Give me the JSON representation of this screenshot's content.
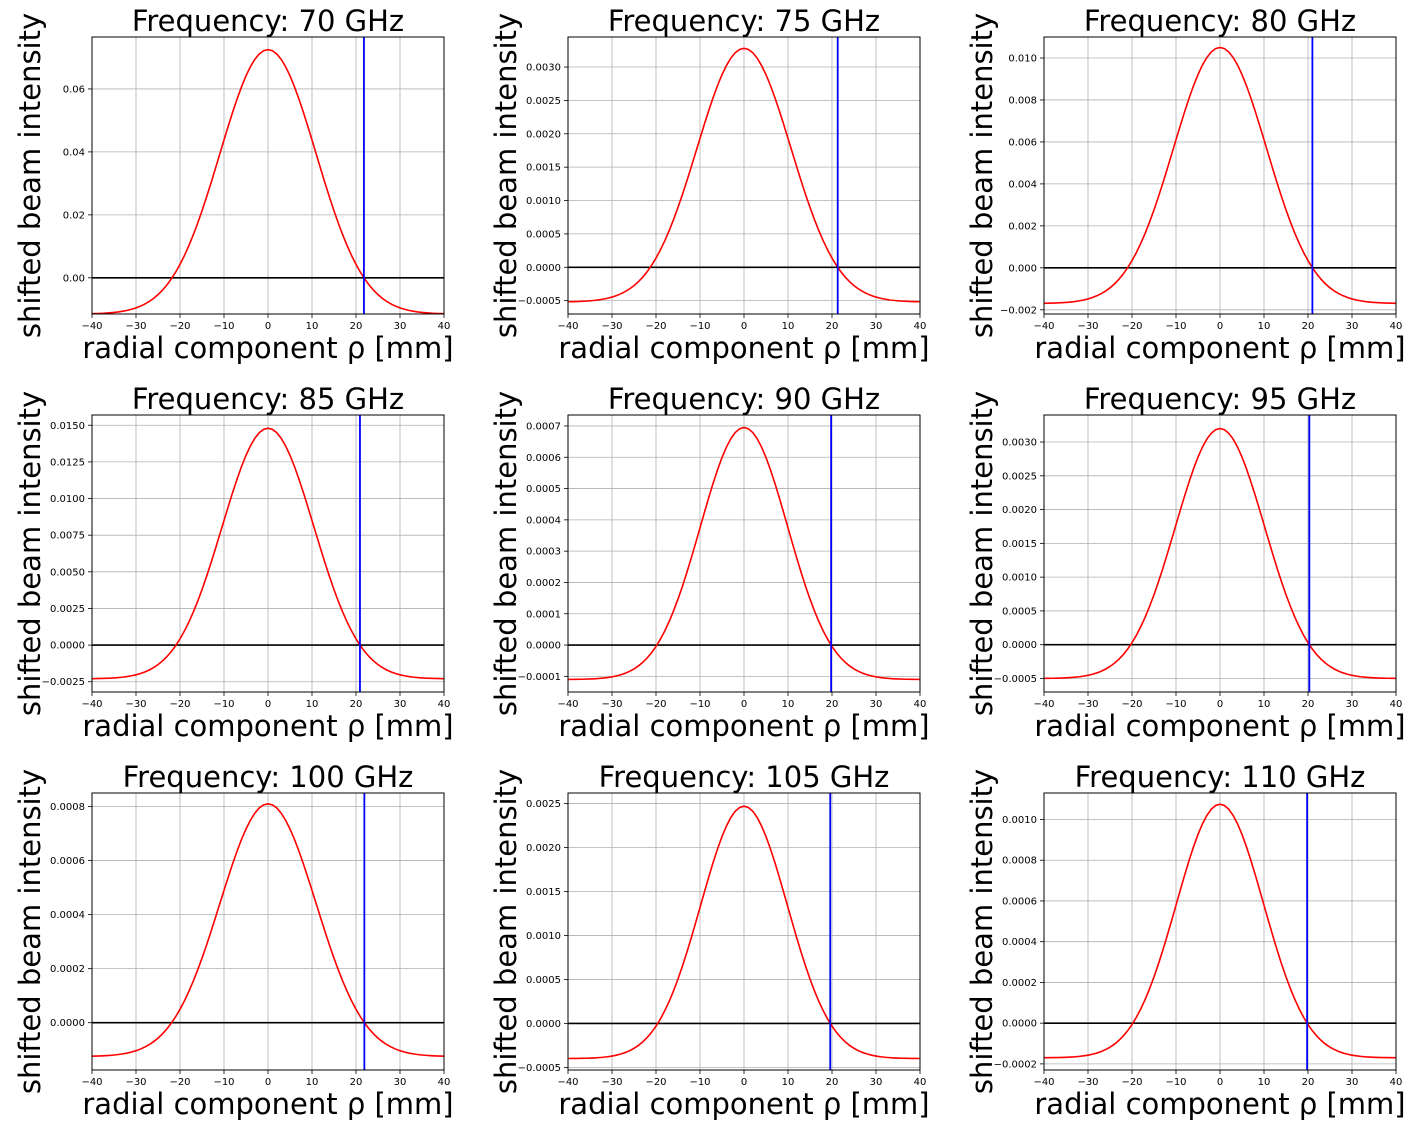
{
  "chart_data": [
    {
      "type": "line",
      "title": "Frequency: 70 GHz",
      "xlabel": "radial component ρ [mm]",
      "ylabel": "shifted beam intensity",
      "xlim": [
        -40,
        40
      ],
      "ylim": [
        -0.0115,
        0.0765
      ],
      "xticks": [
        -40,
        -30,
        -20,
        -10,
        0,
        10,
        20,
        30,
        40
      ],
      "xtick_labels": [
        "−40",
        "−30",
        "−20",
        "−10",
        "0",
        "10",
        "20",
        "30",
        "40"
      ],
      "yticks": [
        0,
        0.02,
        0.04,
        0.06
      ],
      "ytick_labels": [
        "0.00",
        "0.02",
        "0.04",
        "0.06"
      ],
      "series": [
        {
          "color": "#ff0000",
          "gaussian": {
            "peak": 0.0725,
            "floor": -0.0115,
            "zero_crossing": 21.8
          }
        }
      ],
      "hline": {
        "y": 0,
        "color": "#000000"
      },
      "vline": {
        "x": 21.8,
        "color": "#0000ff"
      },
      "grid": true
    },
    {
      "type": "line",
      "title": "Frequency: 75 GHz",
      "xlabel": "radial component ρ [mm]",
      "ylabel": "shifted beam intensity",
      "xlim": [
        -40,
        40
      ],
      "ylim": [
        -0.0007,
        0.00345
      ],
      "xticks": [
        -40,
        -30,
        -20,
        -10,
        0,
        10,
        20,
        30,
        40
      ],
      "xtick_labels": [
        "−40",
        "−30",
        "−20",
        "−10",
        "0",
        "10",
        "20",
        "30",
        "40"
      ],
      "yticks": [
        -0.0005,
        0,
        0.0005,
        0.001,
        0.0015,
        0.002,
        0.0025,
        0.003
      ],
      "ytick_labels": [
        "−0.0005",
        "0.0000",
        "0.0005",
        "0.0010",
        "0.0015",
        "0.0020",
        "0.0025",
        "0.0030"
      ],
      "series": [
        {
          "color": "#ff0000",
          "gaussian": {
            "peak": 0.00328,
            "floor": -0.00052,
            "zero_crossing": 21.3
          }
        }
      ],
      "hline": {
        "y": 0,
        "color": "#000000"
      },
      "vline": {
        "x": 21.3,
        "color": "#0000ff"
      },
      "grid": true
    },
    {
      "type": "line",
      "title": "Frequency: 80 GHz",
      "xlabel": "radial component ρ [mm]",
      "ylabel": "shifted beam intensity",
      "xlim": [
        -40,
        40
      ],
      "ylim": [
        -0.0022,
        0.011
      ],
      "xticks": [
        -40,
        -30,
        -20,
        -10,
        0,
        10,
        20,
        30,
        40
      ],
      "xtick_labels": [
        "−40",
        "−30",
        "−20",
        "−10",
        "0",
        "10",
        "20",
        "30",
        "40"
      ],
      "yticks": [
        -0.002,
        0,
        0.002,
        0.004,
        0.006,
        0.008,
        0.01
      ],
      "ytick_labels": [
        "−0.002",
        "0.000",
        "0.002",
        "0.004",
        "0.006",
        "0.008",
        "0.010"
      ],
      "series": [
        {
          "color": "#ff0000",
          "gaussian": {
            "peak": 0.0105,
            "floor": -0.0017,
            "zero_crossing": 21.0
          }
        }
      ],
      "hline": {
        "y": 0,
        "color": "#000000"
      },
      "vline": {
        "x": 21.0,
        "color": "#0000ff"
      },
      "grid": true
    },
    {
      "type": "line",
      "title": "Frequency: 85 GHz",
      "xlabel": "radial component ρ [mm]",
      "ylabel": "shifted beam intensity",
      "xlim": [
        -40,
        40
      ],
      "ylim": [
        -0.0032,
        0.0157
      ],
      "xticks": [
        -40,
        -30,
        -20,
        -10,
        0,
        10,
        20,
        30,
        40
      ],
      "xtick_labels": [
        "−40",
        "−30",
        "−20",
        "−10",
        "0",
        "10",
        "20",
        "30",
        "40"
      ],
      "yticks": [
        -0.0025,
        0,
        0.0025,
        0.005,
        0.0075,
        0.01,
        0.0125,
        0.015
      ],
      "ytick_labels": [
        "−0.0025",
        "0.0000",
        "0.0025",
        "0.0050",
        "0.0075",
        "0.0100",
        "0.0125",
        "0.0150"
      ],
      "series": [
        {
          "color": "#ff0000",
          "gaussian": {
            "peak": 0.0148,
            "floor": -0.0023,
            "zero_crossing": 20.9
          }
        }
      ],
      "hline": {
        "y": 0,
        "color": "#000000"
      },
      "vline": {
        "x": 20.9,
        "color": "#0000ff"
      },
      "grid": true
    },
    {
      "type": "line",
      "title": "Frequency: 90 GHz",
      "xlabel": "radial component ρ [mm]",
      "ylabel": "shifted beam intensity",
      "xlim": [
        -40,
        40
      ],
      "ylim": [
        -0.00015,
        0.000735
      ],
      "xticks": [
        -40,
        -30,
        -20,
        -10,
        0,
        10,
        20,
        30,
        40
      ],
      "xtick_labels": [
        "−40",
        "−30",
        "−20",
        "−10",
        "0",
        "10",
        "20",
        "30",
        "40"
      ],
      "yticks": [
        -0.0001,
        0,
        0.0001,
        0.0002,
        0.0003,
        0.0004,
        0.0005,
        0.0006,
        0.0007
      ],
      "ytick_labels": [
        "−0.0001",
        "0.0000",
        "0.0001",
        "0.0002",
        "0.0003",
        "0.0004",
        "0.0005",
        "0.0006",
        "0.0007"
      ],
      "series": [
        {
          "color": "#ff0000",
          "gaussian": {
            "peak": 0.000695,
            "floor": -0.00011,
            "zero_crossing": 19.8
          }
        }
      ],
      "hline": {
        "y": 0,
        "color": "#000000"
      },
      "vline": {
        "x": 19.8,
        "color": "#0000ff"
      },
      "grid": true
    },
    {
      "type": "line",
      "title": "Frequency: 95 GHz",
      "xlabel": "radial component ρ [mm]",
      "ylabel": "shifted beam intensity",
      "xlim": [
        -40,
        40
      ],
      "ylim": [
        -0.0007,
        0.0034
      ],
      "xticks": [
        -40,
        -30,
        -20,
        -10,
        0,
        10,
        20,
        30,
        40
      ],
      "xtick_labels": [
        "−40",
        "−30",
        "−20",
        "−10",
        "0",
        "10",
        "20",
        "30",
        "40"
      ],
      "yticks": [
        -0.0005,
        0,
        0.0005,
        0.001,
        0.0015,
        0.002,
        0.0025,
        0.003
      ],
      "ytick_labels": [
        "−0.0005",
        "0.0000",
        "0.0005",
        "0.0010",
        "0.0015",
        "0.0020",
        "0.0025",
        "0.0030"
      ],
      "series": [
        {
          "color": "#ff0000",
          "gaussian": {
            "peak": 0.0032,
            "floor": -0.0005,
            "zero_crossing": 20.3
          }
        }
      ],
      "hline": {
        "y": 0,
        "color": "#000000"
      },
      "vline": {
        "x": 20.3,
        "color": "#0000ff"
      },
      "grid": true
    },
    {
      "type": "line",
      "title": "Frequency: 100 GHz",
      "xlabel": "radial component ρ [mm]",
      "ylabel": "shifted beam intensity",
      "xlim": [
        -40,
        40
      ],
      "ylim": [
        -0.000175,
        0.00085
      ],
      "xticks": [
        -40,
        -30,
        -20,
        -10,
        0,
        10,
        20,
        30,
        40
      ],
      "xtick_labels": [
        "−40",
        "−30",
        "−20",
        "−10",
        "0",
        "10",
        "20",
        "30",
        "40"
      ],
      "yticks": [
        0,
        0.0002,
        0.0004,
        0.0006,
        0.0008
      ],
      "ytick_labels": [
        "0.0000",
        "0.0002",
        "0.0004",
        "0.0006",
        "0.0008"
      ],
      "series": [
        {
          "color": "#ff0000",
          "gaussian": {
            "peak": 0.00081,
            "floor": -0.000125,
            "zero_crossing": 21.9
          }
        }
      ],
      "hline": {
        "y": 0,
        "color": "#000000"
      },
      "vline": {
        "x": 21.9,
        "color": "#0000ff"
      },
      "grid": true
    },
    {
      "type": "line",
      "title": "Frequency: 105 GHz",
      "xlabel": "radial component ρ [mm]",
      "ylabel": "shifted beam intensity",
      "xlim": [
        -40,
        40
      ],
      "ylim": [
        -0.00053,
        0.00262
      ],
      "xticks": [
        -40,
        -30,
        -20,
        -10,
        0,
        10,
        20,
        30,
        40
      ],
      "xtick_labels": [
        "−40",
        "−30",
        "−20",
        "−10",
        "0",
        "10",
        "20",
        "30",
        "40"
      ],
      "yticks": [
        -0.0005,
        0,
        0.0005,
        0.001,
        0.0015,
        0.002,
        0.0025
      ],
      "ytick_labels": [
        "−0.0005",
        "0.0000",
        "0.0005",
        "0.0010",
        "0.0015",
        "0.0020",
        "0.0025"
      ],
      "series": [
        {
          "color": "#ff0000",
          "gaussian": {
            "peak": 0.00247,
            "floor": -0.0004,
            "zero_crossing": 19.6
          }
        }
      ],
      "hline": {
        "y": 0,
        "color": "#000000"
      },
      "vline": {
        "x": 19.6,
        "color": "#0000ff"
      },
      "grid": true
    },
    {
      "type": "line",
      "title": "Frequency: 110 GHz",
      "xlabel": "radial component ρ [mm]",
      "ylabel": "shifted beam intensity",
      "xlim": [
        -40,
        40
      ],
      "ylim": [
        -0.00023,
        0.00113
      ],
      "xticks": [
        -40,
        -30,
        -20,
        -10,
        0,
        10,
        20,
        30,
        40
      ],
      "xtick_labels": [
        "−40",
        "−30",
        "−20",
        "−10",
        "0",
        "10",
        "20",
        "30",
        "40"
      ],
      "yticks": [
        -0.0002,
        0,
        0.0002,
        0.0004,
        0.0006,
        0.0008,
        0.001
      ],
      "ytick_labels": [
        "−0.0002",
        "0.0000",
        "0.0002",
        "0.0004",
        "0.0006",
        "0.0008",
        "0.0010"
      ],
      "series": [
        {
          "color": "#ff0000",
          "gaussian": {
            "peak": 0.001075,
            "floor": -0.00017,
            "zero_crossing": 19.8
          }
        }
      ],
      "hline": {
        "y": 0,
        "color": "#000000"
      },
      "vline": {
        "x": 19.8,
        "color": "#0000ff"
      },
      "grid": true
    }
  ]
}
